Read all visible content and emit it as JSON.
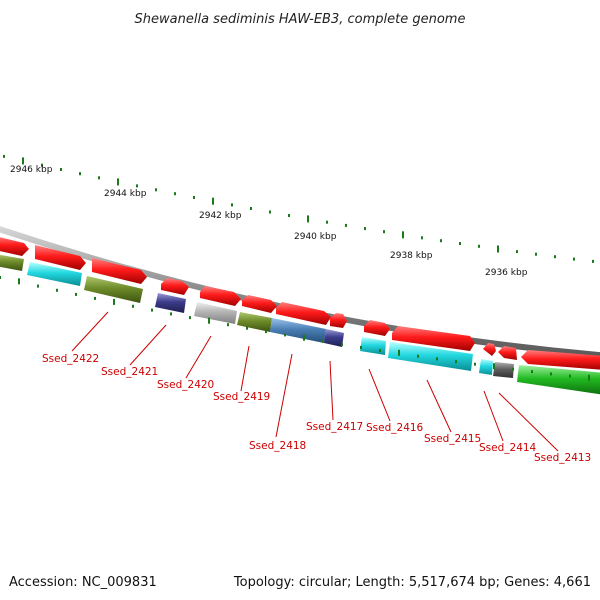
{
  "title": "Shewanella sediminis HAW-EB3, complete genome",
  "footer": {
    "accession": "Accession: NC_009831",
    "summary": "Topology: circular; Length: 5,517,674 bp; Genes: 4,661"
  },
  "scale_labels": [
    "2946 kbp",
    "2944 kbp",
    "2942 kbp",
    "2940 kbp",
    "2938 kbp",
    "2936 kbp"
  ],
  "gene_labels": [
    "Ssed_2422",
    "Ssed_2421",
    "Ssed_2420",
    "Ssed_2419",
    "Ssed_2418",
    "Ssed_2417",
    "Ssed_2416",
    "Ssed_2415",
    "Ssed_2414",
    "Ssed_2413"
  ],
  "colors": {
    "forward": "#ff1a1a",
    "cyan": "#22d8e0",
    "olive": "#6e8c2a",
    "navy": "#3c3c8c",
    "grey": "#b4b4b4",
    "steel": "#4a7fb5",
    "dark_grey": "#606060",
    "green": "#22bb22",
    "tick": "#1a7a1a",
    "label": "#cc0000"
  }
}
